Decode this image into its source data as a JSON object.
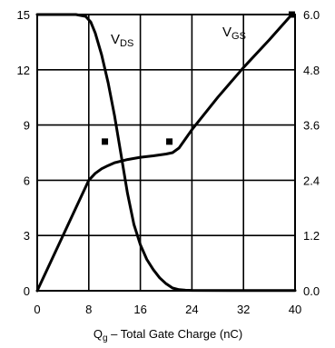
{
  "chart_data": {
    "type": "line",
    "xlabel_main": "Q",
    "xlabel_sub": "g",
    "xlabel_rest": " – Total Gate Charge (nC)",
    "xlim": [
      0,
      40
    ],
    "ylim_left": [
      0,
      15
    ],
    "ylim_right": [
      0,
      6
    ],
    "x_ticks": [
      "0",
      "8",
      "16",
      "24",
      "32",
      "40"
    ],
    "y_left_ticks": [
      "0",
      "3",
      "6",
      "9",
      "12",
      "15"
    ],
    "y_right_ticks": [
      "0.0",
      "1.2",
      "2.4",
      "3.6",
      "4.8",
      "6.0"
    ],
    "grid": true,
    "series": [
      {
        "label_main": "V",
        "label_sub": "DS",
        "axis": "left",
        "x": [
          0,
          6,
          7.5,
          8.3,
          9,
          10,
          11,
          12,
          13,
          14,
          15,
          16,
          17,
          18,
          19,
          20,
          21,
          22,
          23,
          24,
          30,
          40
        ],
        "y": [
          15,
          15,
          14.9,
          14.6,
          14,
          12.8,
          11.3,
          9.5,
          7.4,
          5.3,
          3.6,
          2.5,
          1.7,
          1.15,
          0.7,
          0.38,
          0.15,
          0.06,
          0.03,
          0.02,
          0.01,
          0.01
        ]
      },
      {
        "label_main": "V",
        "label_sub": "GS",
        "axis": "right",
        "x": [
          0,
          2,
          4,
          6,
          8,
          9,
          10,
          11,
          12,
          14,
          16,
          18,
          19,
          20,
          21,
          22,
          24,
          28,
          32,
          36,
          39.5
        ],
        "y": [
          0,
          0.6,
          1.2,
          1.8,
          2.4,
          2.55,
          2.65,
          2.72,
          2.78,
          2.85,
          2.9,
          2.93,
          2.95,
          2.97,
          3.0,
          3.1,
          3.5,
          4.2,
          4.85,
          5.45,
          6.0
        ]
      }
    ],
    "markers": [
      {
        "x": 10.5,
        "y": 8.1
      },
      {
        "x": 20.5,
        "y": 8.1
      },
      {
        "x": 39.5,
        "y": 15
      }
    ]
  }
}
